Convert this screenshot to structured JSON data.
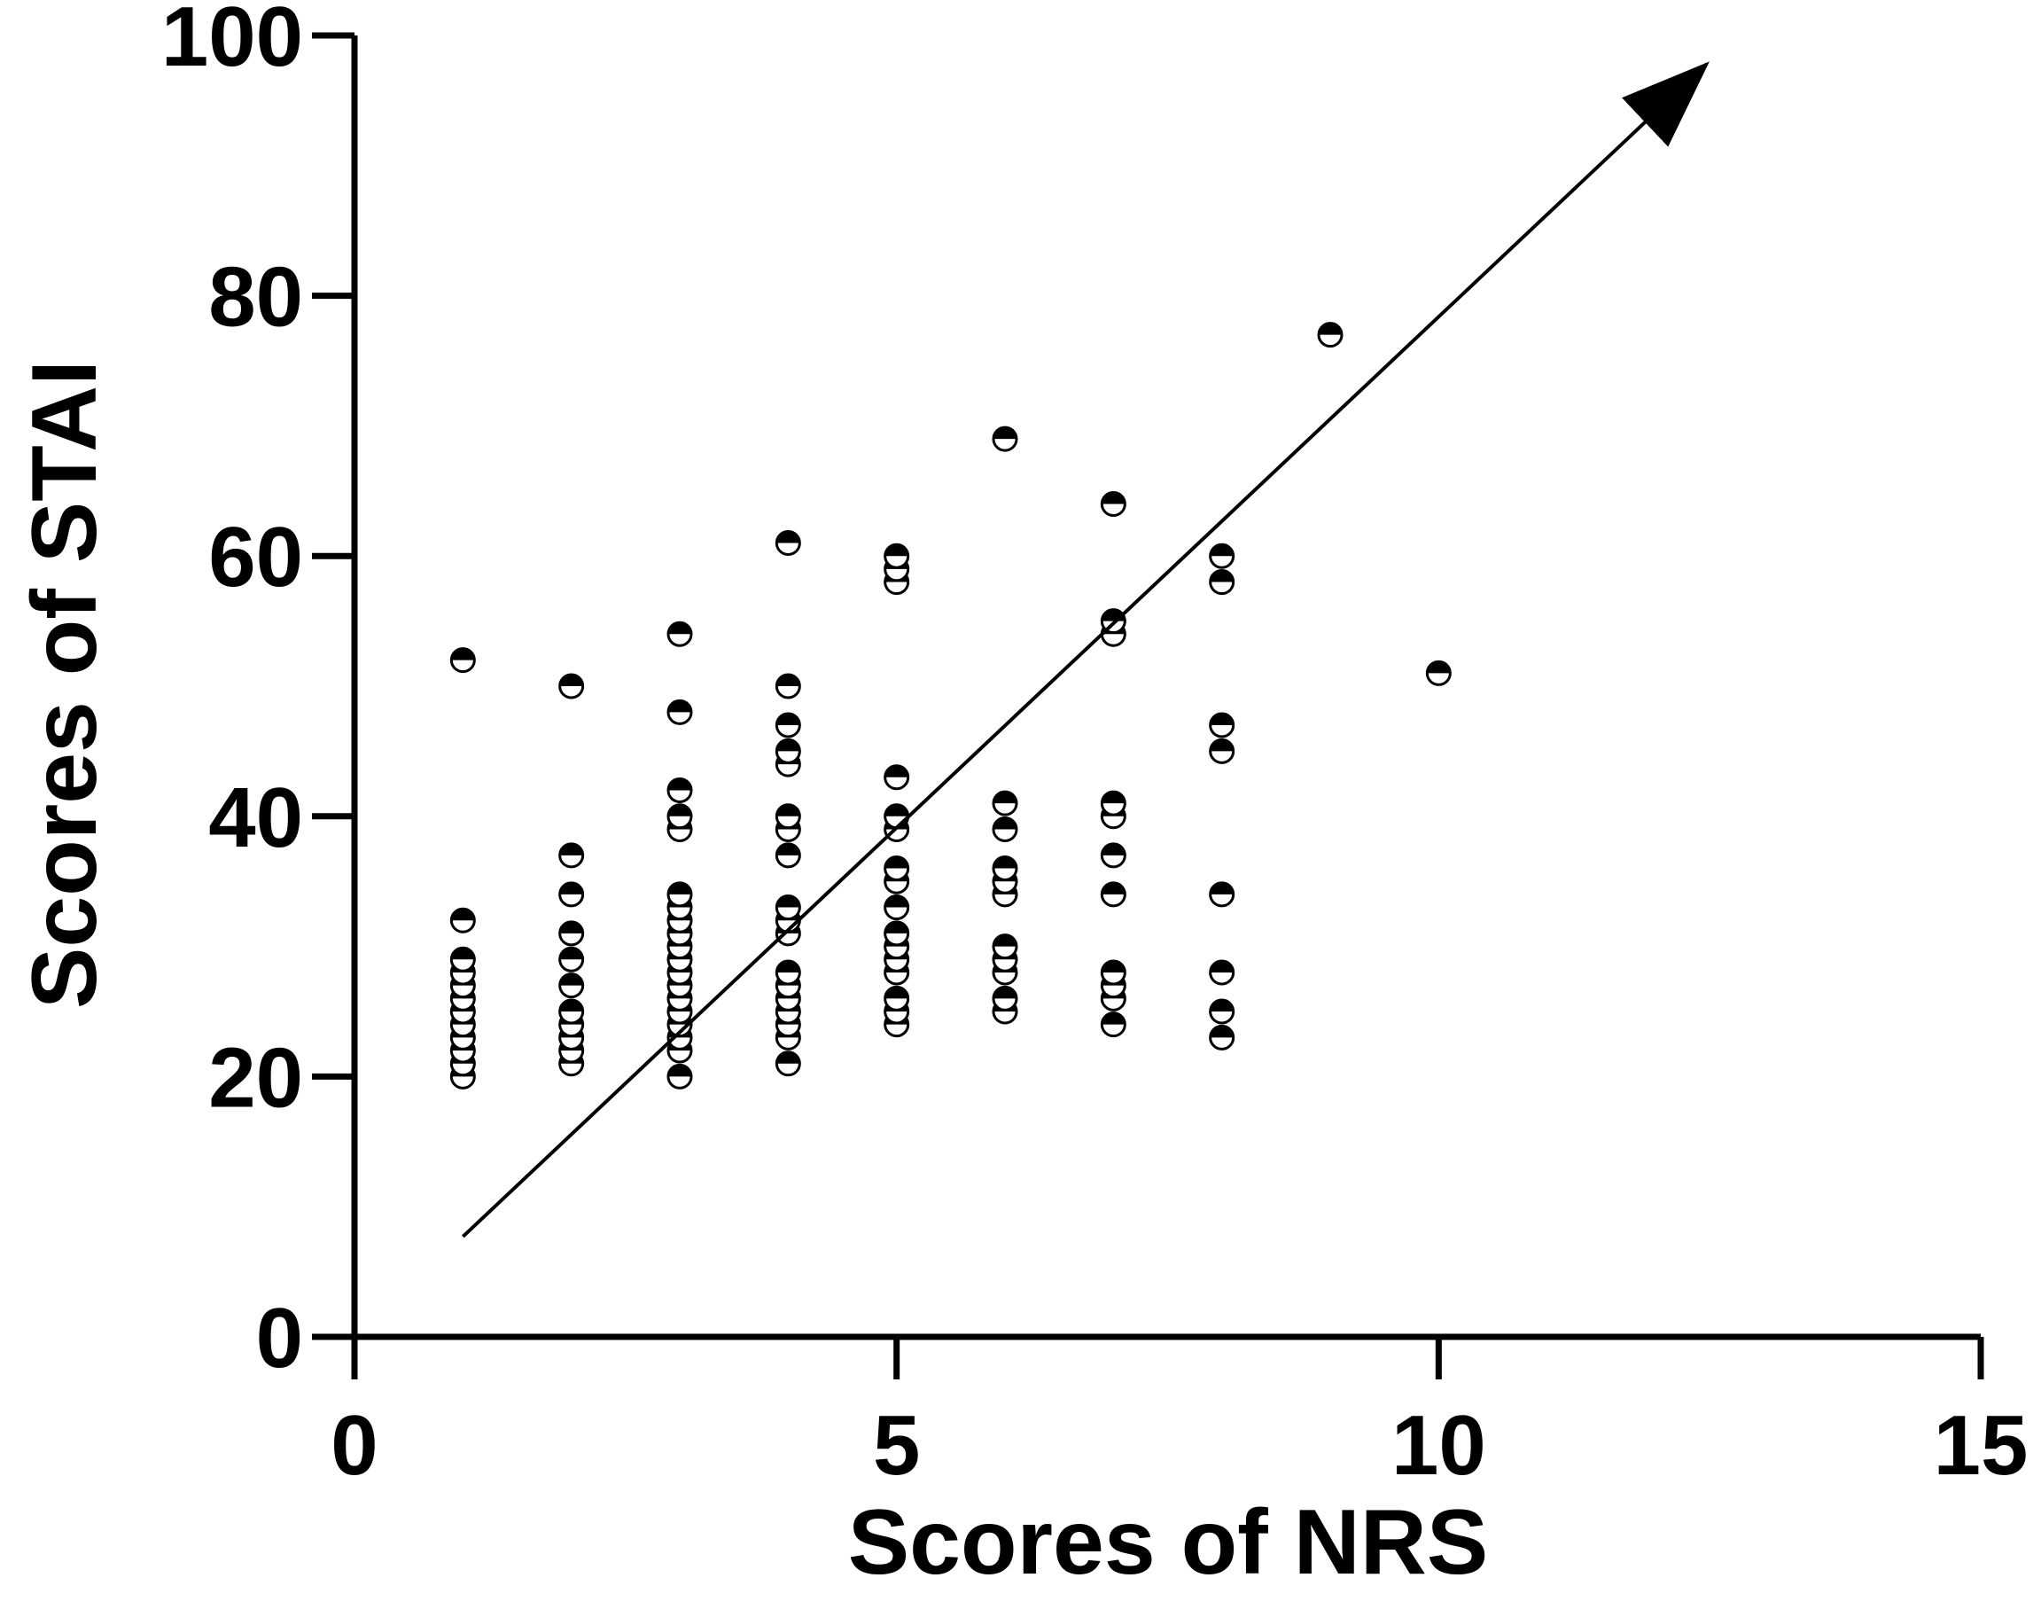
{
  "chart_data": {
    "type": "scatter",
    "title": "",
    "xlabel": "Scores of NRS",
    "ylabel": "Scores of STAI",
    "xlim": [
      0,
      15
    ],
    "ylim": [
      0,
      100
    ],
    "x_ticks": [
      "0",
      "5",
      "10",
      "15"
    ],
    "y_ticks": [
      "0",
      "20",
      "40",
      "60",
      "80",
      "100"
    ],
    "grid": false,
    "legend": "none",
    "colors": {
      "axis": "#000000",
      "marker_fill": "#000000",
      "marker_open": "#ffffff",
      "line": "#000000"
    },
    "series": [
      {
        "points": [
          [
            1,
            20
          ],
          [
            1,
            21
          ],
          [
            1,
            22
          ],
          [
            1,
            23
          ],
          [
            1,
            24
          ],
          [
            1,
            25
          ],
          [
            1,
            26
          ],
          [
            1,
            27
          ],
          [
            1,
            28
          ],
          [
            1,
            29
          ],
          [
            1,
            32
          ],
          [
            1,
            52
          ],
          [
            2,
            21
          ],
          [
            2,
            22
          ],
          [
            2,
            23
          ],
          [
            2,
            24
          ],
          [
            2,
            25
          ],
          [
            2,
            27
          ],
          [
            2,
            29
          ],
          [
            2,
            31
          ],
          [
            2,
            34
          ],
          [
            2,
            37
          ],
          [
            2,
            50
          ],
          [
            3,
            20
          ],
          [
            3,
            22
          ],
          [
            3,
            23
          ],
          [
            3,
            24
          ],
          [
            3,
            25
          ],
          [
            3,
            26
          ],
          [
            3,
            27
          ],
          [
            3,
            28
          ],
          [
            3,
            29
          ],
          [
            3,
            30
          ],
          [
            3,
            31
          ],
          [
            3,
            32
          ],
          [
            3,
            33
          ],
          [
            3,
            34
          ],
          [
            3,
            39
          ],
          [
            3,
            40
          ],
          [
            3,
            42
          ],
          [
            3,
            48
          ],
          [
            3,
            54
          ],
          [
            4,
            21
          ],
          [
            4,
            23
          ],
          [
            4,
            24
          ],
          [
            4,
            25
          ],
          [
            4,
            26
          ],
          [
            4,
            27
          ],
          [
            4,
            28
          ],
          [
            4,
            31
          ],
          [
            4,
            32
          ],
          [
            4,
            33
          ],
          [
            4,
            37
          ],
          [
            4,
            39
          ],
          [
            4,
            40
          ],
          [
            4,
            44
          ],
          [
            4,
            45
          ],
          [
            4,
            47
          ],
          [
            4,
            50
          ],
          [
            4,
            61
          ],
          [
            5,
            24
          ],
          [
            5,
            25
          ],
          [
            5,
            26
          ],
          [
            5,
            28
          ],
          [
            5,
            29
          ],
          [
            5,
            30
          ],
          [
            5,
            31
          ],
          [
            5,
            33
          ],
          [
            5,
            35
          ],
          [
            5,
            36
          ],
          [
            5,
            39
          ],
          [
            5,
            40
          ],
          [
            5,
            43
          ],
          [
            5,
            58
          ],
          [
            5,
            59
          ],
          [
            5,
            60
          ],
          [
            6,
            25
          ],
          [
            6,
            26
          ],
          [
            6,
            28
          ],
          [
            6,
            29
          ],
          [
            6,
            30
          ],
          [
            6,
            34
          ],
          [
            6,
            35
          ],
          [
            6,
            36
          ],
          [
            6,
            39
          ],
          [
            6,
            41
          ],
          [
            6,
            69
          ],
          [
            7,
            24
          ],
          [
            7,
            26
          ],
          [
            7,
            27
          ],
          [
            7,
            28
          ],
          [
            7,
            34
          ],
          [
            7,
            37
          ],
          [
            7,
            40
          ],
          [
            7,
            41
          ],
          [
            7,
            54
          ],
          [
            7,
            55
          ],
          [
            7,
            64
          ],
          [
            8,
            23
          ],
          [
            8,
            25
          ],
          [
            8,
            28
          ],
          [
            8,
            34
          ],
          [
            8,
            45
          ],
          [
            8,
            47
          ],
          [
            8,
            58
          ],
          [
            8,
            60
          ],
          [
            9,
            77
          ],
          [
            10,
            51
          ]
        ]
      }
    ],
    "trend_arrow": {
      "from": [
        1,
        7.7
      ],
      "to": [
        12,
        94
      ]
    }
  }
}
